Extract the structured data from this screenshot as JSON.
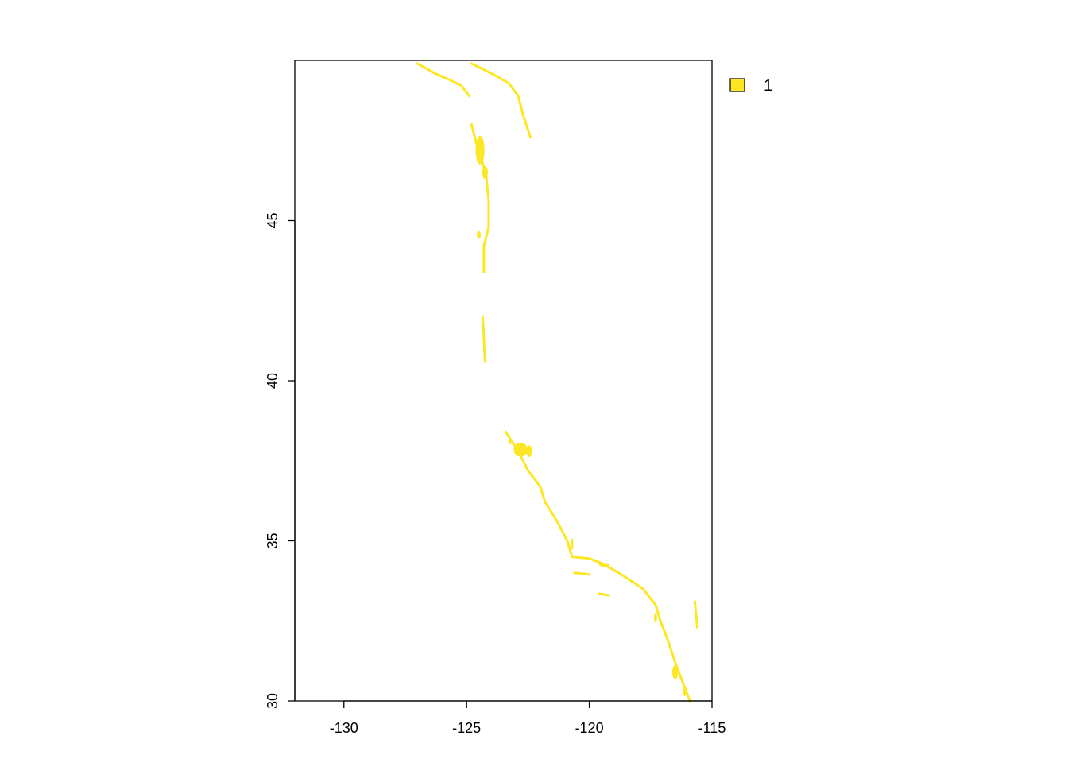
{
  "chart_data": {
    "type": "raster-map",
    "xlim": [
      -132,
      -115
    ],
    "ylim": [
      30,
      50
    ],
    "x_ticks": [
      -130,
      -125,
      -120,
      -115
    ],
    "y_ticks": [
      30,
      35,
      40,
      45
    ],
    "x_tick_labels": [
      "-130",
      "-125",
      "-120",
      "-115"
    ],
    "y_tick_labels": [
      "30",
      "35",
      "40",
      "45"
    ],
    "legend": [
      {
        "label": "1",
        "color": "#FDE725"
      }
    ],
    "legend_position": "top-right outside plot",
    "fill_color": "#FDE725",
    "polylines": [
      [
        [
          -124.8,
          48.0
        ],
        [
          -124.6,
          47.4
        ],
        [
          -124.35,
          46.8
        ],
        [
          -124.2,
          46.4
        ],
        [
          -124.1,
          45.6
        ],
        [
          -124.1,
          44.8
        ],
        [
          -124.3,
          44.2
        ],
        [
          -124.3,
          43.4
        ]
      ],
      [
        [
          -124.35,
          42.0
        ],
        [
          -124.3,
          41.4
        ],
        [
          -124.25,
          40.6
        ]
      ],
      [
        [
          -123.4,
          38.4
        ],
        [
          -122.9,
          37.8
        ],
        [
          -122.5,
          37.2
        ],
        [
          -122.0,
          36.7
        ],
        [
          -121.8,
          36.2
        ],
        [
          -121.3,
          35.6
        ],
        [
          -120.9,
          35.0
        ],
        [
          -120.7,
          34.5
        ],
        [
          -120.0,
          34.45
        ],
        [
          -119.5,
          34.3
        ],
        [
          -118.8,
          34.0
        ],
        [
          -118.4,
          33.8
        ],
        [
          -117.8,
          33.5
        ],
        [
          -117.3,
          33.0
        ],
        [
          -117.1,
          32.5
        ],
        [
          -116.8,
          31.9
        ],
        [
          -116.5,
          31.2
        ],
        [
          -116.2,
          30.6
        ],
        [
          -115.9,
          30.0
        ]
      ],
      [
        [
          -127.0,
          49.9
        ],
        [
          -126.3,
          49.6
        ],
        [
          -125.7,
          49.4
        ],
        [
          -125.2,
          49.2
        ],
        [
          -124.9,
          48.9
        ]
      ],
      [
        [
          -124.8,
          49.9
        ],
        [
          -124.0,
          49.6
        ],
        [
          -123.3,
          49.3
        ],
        [
          -122.9,
          48.9
        ],
        [
          -122.7,
          48.3
        ],
        [
          -122.4,
          47.6
        ]
      ],
      [
        [
          -120.6,
          34.0
        ],
        [
          -120.0,
          33.95
        ]
      ],
      [
        [
          -119.6,
          33.35
        ],
        [
          -119.2,
          33.3
        ]
      ],
      [
        [
          -115.7,
          33.1
        ],
        [
          -115.6,
          32.3
        ]
      ]
    ],
    "blobs": [
      [
        -124.45,
        47.2,
        0.18,
        0.45
      ],
      [
        -124.25,
        46.5,
        0.12,
        0.2
      ],
      [
        -124.5,
        44.55,
        0.08,
        0.12
      ],
      [
        -122.8,
        37.85,
        0.28,
        0.22
      ],
      [
        -122.45,
        37.8,
        0.12,
        0.18
      ],
      [
        -120.7,
        34.9,
        0.05,
        0.18
      ],
      [
        -119.4,
        34.25,
        0.2,
        0.06
      ],
      [
        -117.3,
        32.6,
        0.06,
        0.15
      ],
      [
        -116.5,
        30.9,
        0.12,
        0.22
      ],
      [
        -116.1,
        30.3,
        0.08,
        0.15
      ],
      [
        -123.2,
        38.1,
        0.1,
        0.08
      ]
    ]
  }
}
